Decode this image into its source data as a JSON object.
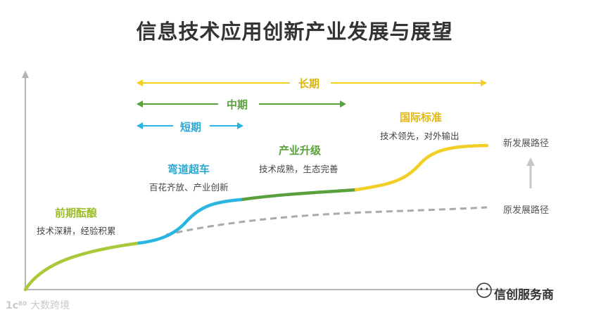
{
  "title": "信息技术应用创新产业发展与展望",
  "phases": {
    "long": "长期",
    "mid": "中期",
    "short": "短期"
  },
  "stages": [
    {
      "title": "前期酝酿",
      "subtitle": "技术深耕，经验积累"
    },
    {
      "title": "弯道超车",
      "subtitle": "百花齐放、产业创新"
    },
    {
      "title": "产业升级",
      "subtitle": "技术成熟，生态完善"
    },
    {
      "title": "国际标准",
      "subtitle": "技术领先，对外输出"
    }
  ],
  "paths": {
    "new": "新发展路径",
    "old": "原发展路径"
  },
  "watermark_left": "大数跨境",
  "watermark_right": "信创服务商",
  "colors": {
    "stage1": "#a9c93a",
    "stage2": "#29b5e0",
    "stage3": "#5aa03c",
    "stage4": "#f2cf24",
    "long_arrow": "#f2cf24",
    "mid_arrow": "#5aa03c",
    "short_arrow": "#29b5e0",
    "old_path": "#aaaaaa",
    "axis": "#b5b5b5"
  }
}
